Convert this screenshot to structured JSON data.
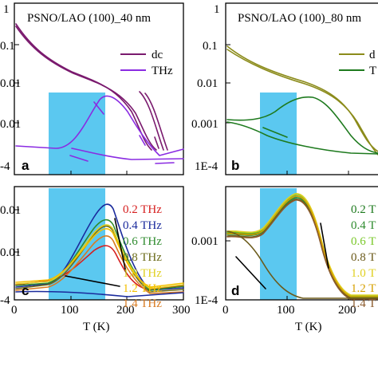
{
  "chart_data": [
    {
      "panel": "a",
      "type": "line",
      "title": "PSNO/LAO (100)_40 nm",
      "y_ticklabels": [
        "1",
        "0.1",
        "0.01",
        "0.01",
        "-4"
      ],
      "x_ticklabels": [],
      "series": [
        {
          "name": "dc",
          "color": "#7a1a6e"
        },
        {
          "name": "THz",
          "color": "#8a2be2"
        }
      ]
    },
    {
      "panel": "b",
      "type": "line",
      "title": "PSNO/LAO (100)_80 nm",
      "y_ticklabels": [
        "1",
        "0.1",
        "0.01",
        "0.001",
        "1E-4"
      ],
      "x_ticklabels": [],
      "series": [
        {
          "name": "d",
          "color": "#8b8b1a"
        },
        {
          "name": "T",
          "color": "#1e7a1e"
        }
      ]
    },
    {
      "panel": "c",
      "type": "line",
      "xlabel": "T (K)",
      "x_ticklabels": [
        "0",
        "100",
        "200",
        "300"
      ],
      "y_ticklabels": [
        "0.01",
        "0.01",
        "-4"
      ],
      "series": [
        {
          "name": "0.2 THz",
          "color": "#d62020"
        },
        {
          "name": "0.4 THz",
          "color": "#1a2a9c"
        },
        {
          "name": "0.6 THz",
          "color": "#2e8b2e"
        },
        {
          "name": "0.8 THz",
          "color": "#6b6b1a"
        },
        {
          "name": "1.0 THz",
          "color": "#e0d020"
        },
        {
          "name": "1.2 THz",
          "color": "#f4c000"
        },
        {
          "name": "1.4 THz",
          "color": "#d87a20"
        }
      ]
    },
    {
      "panel": "d",
      "type": "line",
      "xlabel": "T (K)",
      "x_ticklabels": [
        "0",
        "100",
        "200"
      ],
      "y_ticklabels": [
        "0.001",
        "1E-4"
      ],
      "series": [
        {
          "name": "0.2 T",
          "color": "#1e7a1e"
        },
        {
          "name": "0.4 T",
          "color": "#2e8b2e"
        },
        {
          "name": "0.6 T",
          "color": "#7ac82a"
        },
        {
          "name": "0.8 T",
          "color": "#6b5a1a"
        },
        {
          "name": "1.0 T",
          "color": "#e0d020"
        },
        {
          "name": "1.2 T",
          "color": "#d6a000"
        },
        {
          "name": "1.4 T",
          "color": "#8b5a2b"
        }
      ]
    }
  ],
  "colors": {
    "highlight": "#5bc8f0"
  }
}
